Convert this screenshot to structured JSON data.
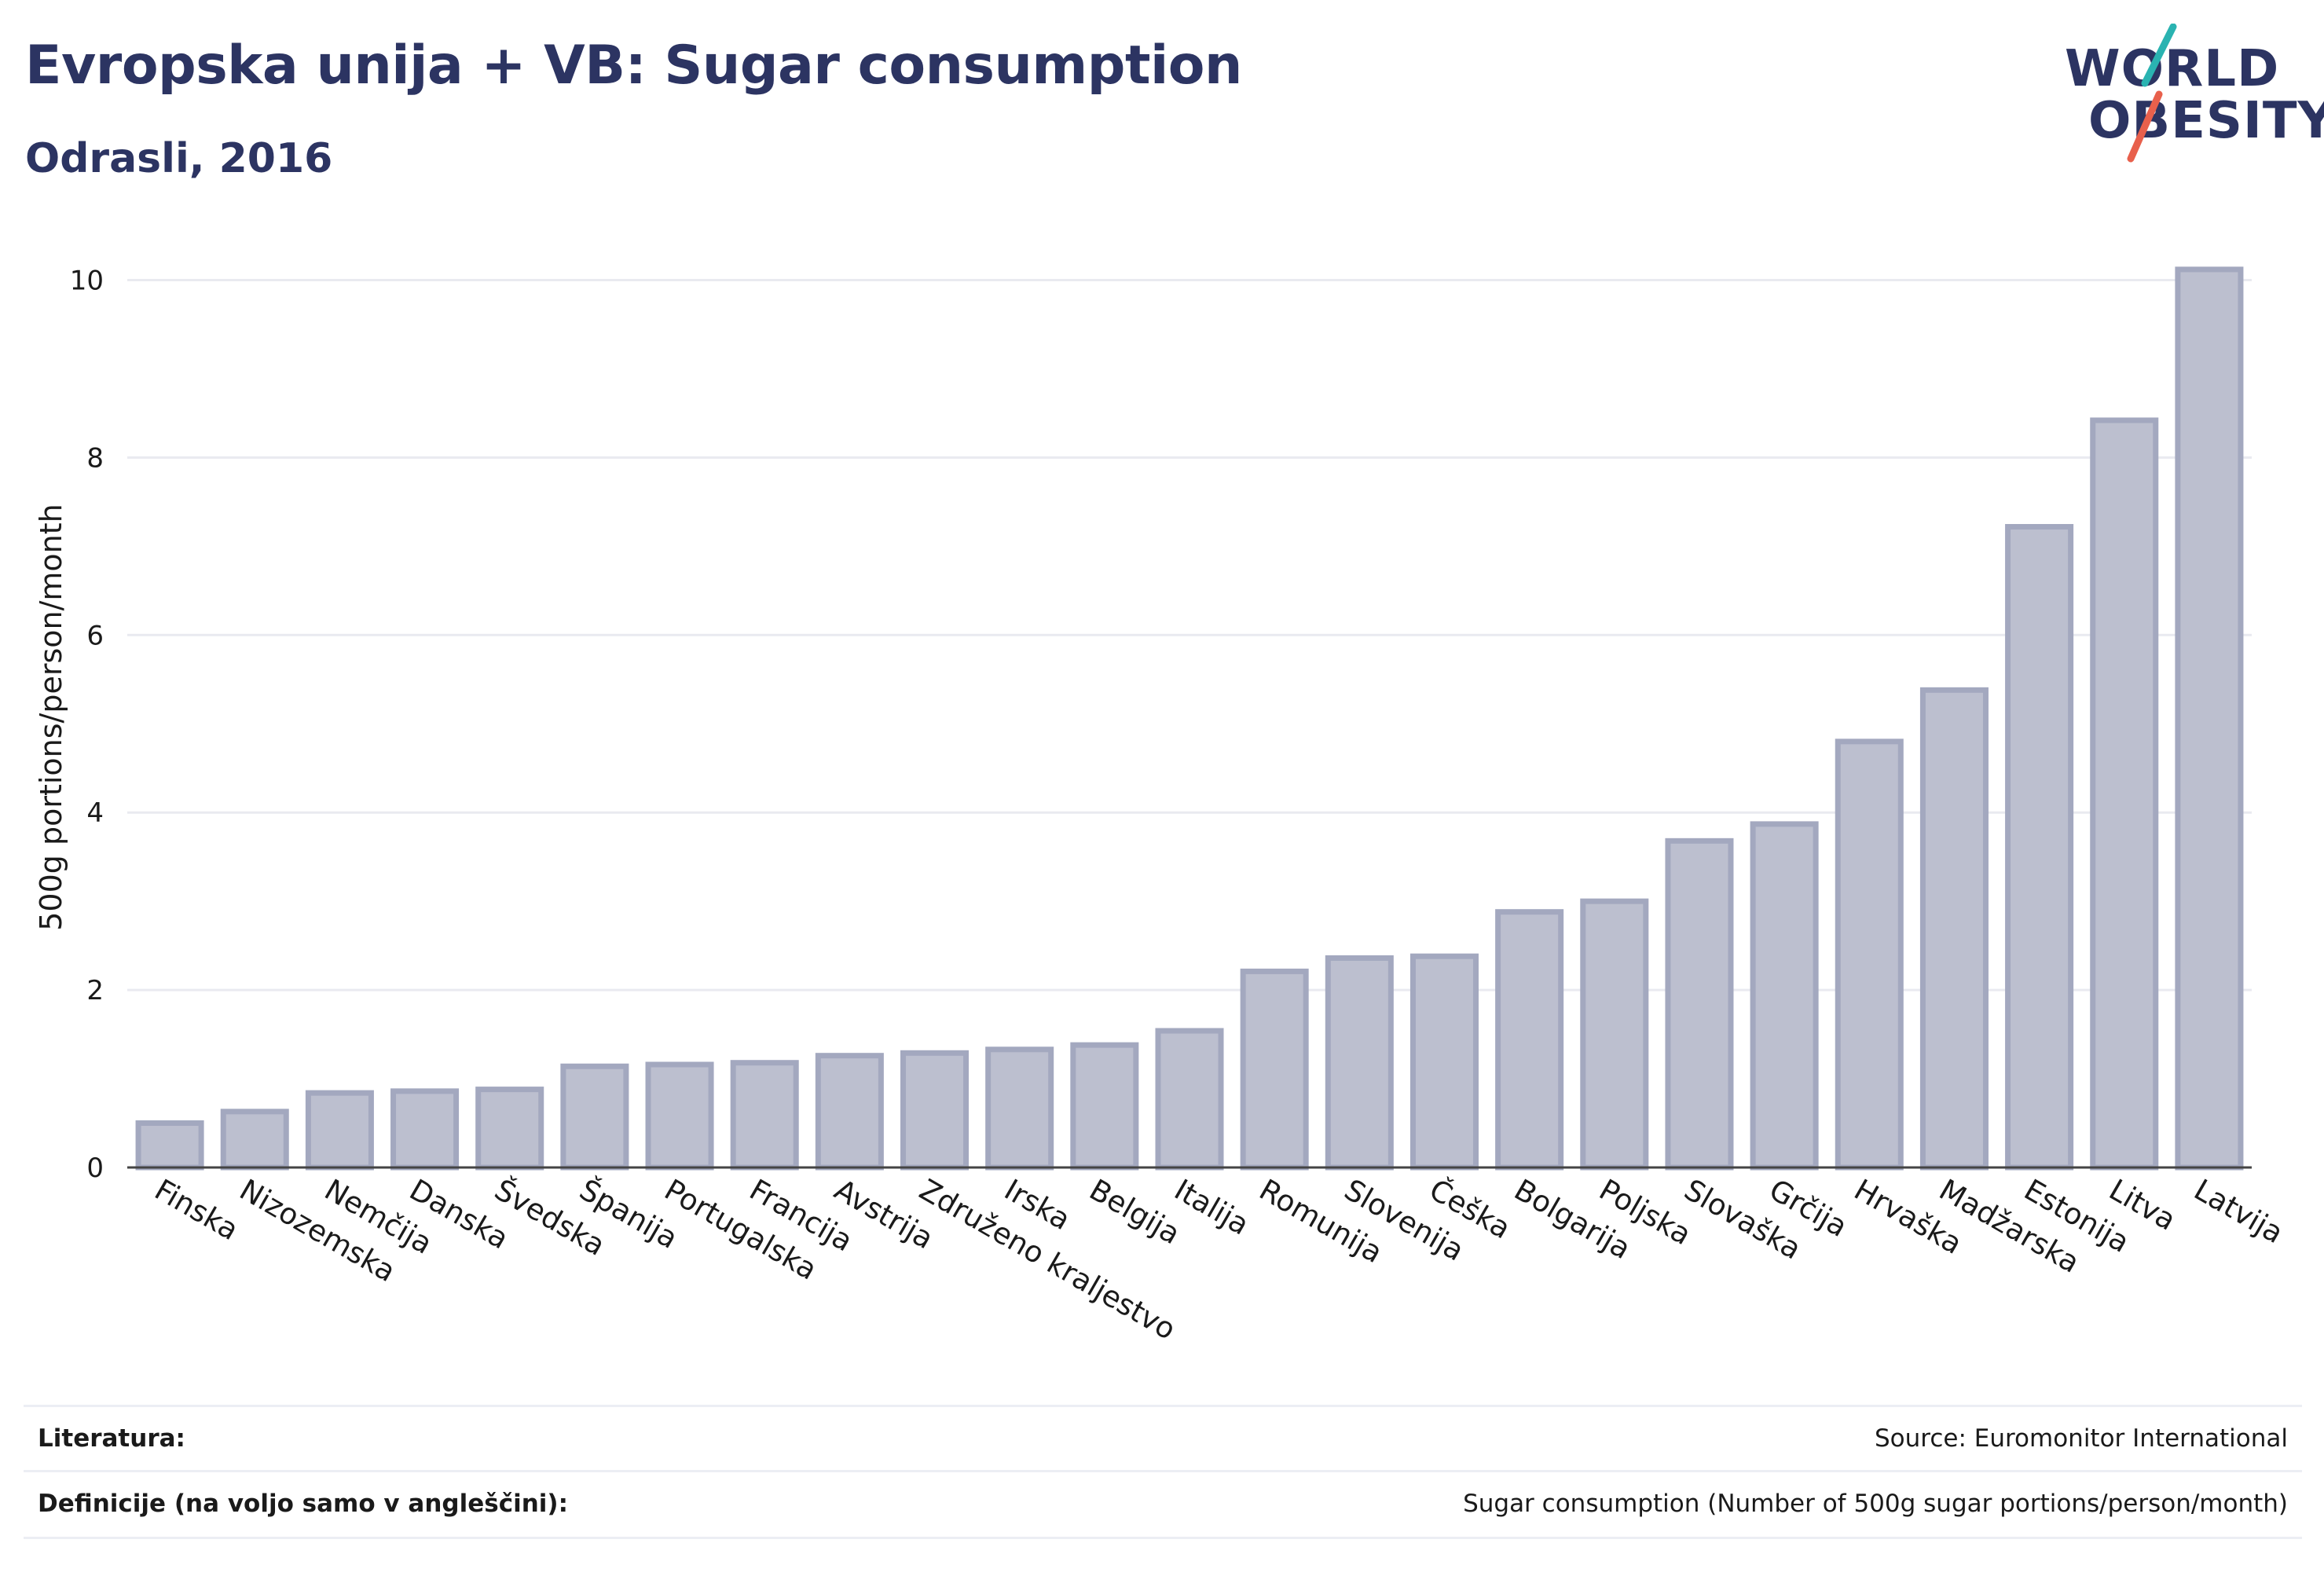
{
  "header": {
    "title": "Evropska unija + VB: Sugar consumption",
    "subtitle": "Odrasli, 2016"
  },
  "logo": {
    "line1": "WORLD",
    "line2": "OBESITY",
    "text_color": "#2c3462",
    "accent_teal": "#2ab3b1",
    "accent_red": "#e8604c"
  },
  "chart_data": {
    "type": "bar",
    "title": "Evropska unija + VB: Sugar consumption",
    "subtitle": "Odrasli, 2016",
    "xlabel": "",
    "ylabel": "500g portions/person/month",
    "ylim": [
      0,
      10.5
    ],
    "yticks": [
      0,
      2,
      4,
      6,
      8,
      10
    ],
    "grid": true,
    "bar_fill": "#bcbfcf",
    "bar_stroke": "#a3a8bf",
    "categories": [
      "Finska",
      "Nizozemska",
      "Nemčija",
      "Danska",
      "Švedska",
      "Španija",
      "Portugalska",
      "Francija",
      "Avstrija",
      "Združeno kraljestvo",
      "Irska",
      "Belgija",
      "Italija",
      "Romunija",
      "Slovenija",
      "Češka",
      "Bolgarija",
      "Poljska",
      "Slovaška",
      "Grčija",
      "Hrvaška",
      "Madžarska",
      "Estonija",
      "Litva",
      "Latvija"
    ],
    "values": [
      0.5,
      0.63,
      0.84,
      0.86,
      0.88,
      1.14,
      1.16,
      1.18,
      1.26,
      1.29,
      1.33,
      1.38,
      1.54,
      2.21,
      2.36,
      2.38,
      2.88,
      3.0,
      3.68,
      3.87,
      4.8,
      5.38,
      7.22,
      8.42,
      10.12
    ]
  },
  "footer": {
    "literature_label": "Literatura:",
    "literature_value": "Source: Euromonitor International",
    "definitions_label": "Definicije (na voljo samo v angleščini):",
    "definitions_value": "Sugar consumption (Number of 500g sugar portions/person/month)"
  }
}
